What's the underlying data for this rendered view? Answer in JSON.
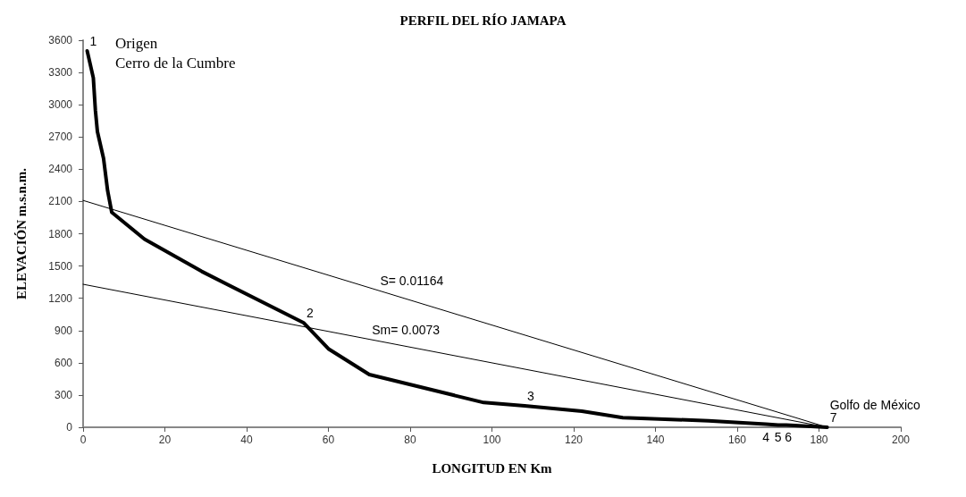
{
  "chart_data": {
    "type": "line",
    "title": "PERFIL DEL RÍO JAMAPA",
    "xlabel": "LONGITUD EN Km",
    "ylabel": "ELEVACIÓN m.s.n.m.",
    "xlim": [
      0,
      200
    ],
    "xticks": [
      0,
      20,
      40,
      60,
      80,
      100,
      120,
      140,
      160,
      180,
      200
    ],
    "ylim": [
      0,
      3600
    ],
    "yticks": [
      0,
      300,
      600,
      900,
      1200,
      1500,
      1800,
      2100,
      2400,
      2700,
      3000,
      3300,
      3600
    ],
    "grid": false,
    "marker": "none",
    "line_style": "solid",
    "series": [
      {
        "color": "#000000",
        "x": [
          1,
          2.5,
          3,
          3.5,
          5,
          6,
          7,
          15,
          29,
          54,
          60,
          70,
          98,
          108,
          122,
          132,
          153,
          167,
          170,
          172,
          182
        ],
        "values": [
          3500,
          3250,
          2950,
          2750,
          2500,
          2200,
          2000,
          1750,
          1450,
          970,
          730,
          490,
          230,
          200,
          150,
          90,
          60,
          30,
          20,
          20,
          0
        ]
      },
      {
        "color": "#000000",
        "x": [
          0,
          182
        ],
        "values": [
          2110,
          0
        ]
      },
      {
        "color": "#000000",
        "x": [
          0,
          182
        ],
        "values": [
          1330,
          0
        ]
      }
    ],
    "annotations": [
      "Origen",
      "Cerro de la Cumbre",
      {
        "text": "1",
        "x": 1,
        "y": 3500
      },
      {
        "text": "2",
        "x": 54,
        "y": 970
      },
      {
        "text": "3",
        "x": 108,
        "y": 200
      },
      {
        "text": "4",
        "x": 167,
        "y": 0
      },
      {
        "text": "5",
        "x": 170,
        "y": 0
      },
      {
        "text": "6",
        "x": 172.5,
        "y": 0
      },
      {
        "text": "7",
        "x": 182,
        "y": 0
      },
      {
        "text": "Golfo de México",
        "x": 182,
        "y": 0
      },
      {
        "text": "S= 0.01164",
        "x": 72,
        "y": 1275
      },
      {
        "text": "Sm= 0.0073",
        "x": 70,
        "y": 818
      }
    ]
  }
}
